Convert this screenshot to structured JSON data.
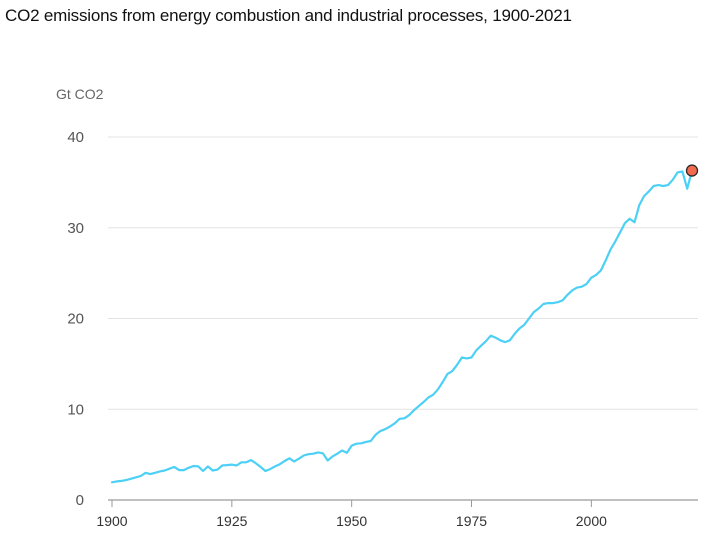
{
  "chart_data": {
    "type": "line",
    "title": "CO2 emissions from energy combustion and industrial processes, 1900-2021",
    "ylabel": "Gt CO2",
    "xlabel": "",
    "xlim": [
      1900,
      2021
    ],
    "ylim": [
      0,
      40
    ],
    "xticks": [
      "1900",
      "1925",
      "1950",
      "1975",
      "2000"
    ],
    "yticks": [
      "0",
      "10",
      "20",
      "30",
      "40"
    ],
    "grid": "horizontal",
    "line_color": "#4dd0f5",
    "marker_color": "#f26b4f",
    "series": [
      {
        "x": [
          1900,
          1901,
          1902,
          1903,
          1904,
          1905,
          1906,
          1907,
          1908,
          1909,
          1910,
          1911,
          1912,
          1913,
          1914,
          1915,
          1916,
          1917,
          1918,
          1919,
          1920,
          1921,
          1922,
          1923,
          1924,
          1925,
          1926,
          1927,
          1928,
          1929,
          1930,
          1931,
          1932,
          1933,
          1934,
          1935,
          1936,
          1937,
          1938,
          1939,
          1940,
          1941,
          1942,
          1943,
          1944,
          1945,
          1946,
          1947,
          1948,
          1949,
          1950,
          1951,
          1952,
          1953,
          1954,
          1955,
          1956,
          1957,
          1958,
          1959,
          1960,
          1961,
          1962,
          1963,
          1964,
          1965,
          1966,
          1967,
          1968,
          1969,
          1970,
          1971,
          1972,
          1973,
          1974,
          1975,
          1976,
          1977,
          1978,
          1979,
          1980,
          1981,
          1982,
          1983,
          1984,
          1985,
          1986,
          1987,
          1988,
          1989,
          1990,
          1991,
          1992,
          1993,
          1994,
          1995,
          1996,
          1997,
          1998,
          1999,
          2000,
          2001,
          2002,
          2003,
          2004,
          2005,
          2006,
          2007,
          2008,
          2009,
          2010,
          2011,
          2012,
          2013,
          2014,
          2015,
          2016,
          2017,
          2018,
          2019,
          2020,
          2021
        ],
        "y": [
          1.95,
          2.05,
          2.1,
          2.2,
          2.35,
          2.5,
          2.65,
          3.0,
          2.85,
          3.0,
          3.15,
          3.25,
          3.45,
          3.65,
          3.3,
          3.3,
          3.55,
          3.75,
          3.7,
          3.2,
          3.7,
          3.25,
          3.35,
          3.8,
          3.85,
          3.9,
          3.8,
          4.15,
          4.15,
          4.4,
          4.05,
          3.65,
          3.2,
          3.4,
          3.7,
          3.95,
          4.3,
          4.6,
          4.25,
          4.55,
          4.9,
          5.05,
          5.1,
          5.25,
          5.15,
          4.35,
          4.8,
          5.1,
          5.45,
          5.2,
          6.0,
          6.2,
          6.25,
          6.4,
          6.5,
          7.2,
          7.6,
          7.8,
          8.1,
          8.45,
          8.95,
          9.0,
          9.35,
          9.9,
          10.35,
          10.8,
          11.3,
          11.6,
          12.2,
          13.0,
          13.9,
          14.2,
          14.9,
          15.7,
          15.6,
          15.7,
          16.5,
          17.0,
          17.5,
          18.1,
          17.9,
          17.6,
          17.4,
          17.6,
          18.3,
          18.9,
          19.3,
          20.0,
          20.7,
          21.1,
          21.6,
          21.7,
          21.7,
          21.8,
          22.0,
          22.6,
          23.1,
          23.4,
          23.5,
          23.8,
          24.5,
          24.8,
          25.3,
          26.4,
          27.6,
          28.5,
          29.5,
          30.5,
          31.0,
          30.6,
          32.5,
          33.5,
          34.0,
          34.6,
          34.7,
          34.6,
          34.7,
          35.3,
          36.1,
          36.2,
          34.3,
          36.3
        ]
      }
    ],
    "highlight": {
      "x": 2021,
      "y": 36.3
    }
  }
}
